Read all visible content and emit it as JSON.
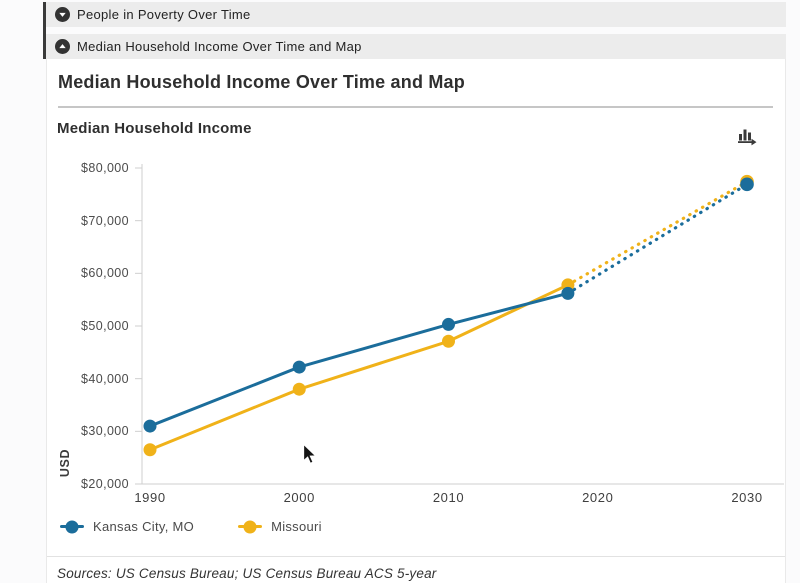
{
  "accordion": {
    "items": [
      {
        "label": "People in Poverty Over Time",
        "state": "collapsed",
        "icon": "chevron-down-circle-icon"
      },
      {
        "label": "Median Household Income Over Time and Map",
        "state": "expanded",
        "icon": "chevron-up-circle-icon"
      }
    ]
  },
  "page": {
    "title": "Median Household Income Over Time and Map"
  },
  "chart": {
    "title": "Median Household Income",
    "y_axis_title": "USD",
    "export_icon": "bar-chart-export-icon"
  },
  "chart_data": {
    "type": "line",
    "title": "Median Household Income",
    "xlabel": "",
    "ylabel": "USD",
    "xlim": [
      1990,
      2030
    ],
    "ylim": [
      20000,
      80000
    ],
    "grid": false,
    "legend_position": "bottom",
    "x_ticks": [
      {
        "value": 1990,
        "label": "1990"
      },
      {
        "value": 2000,
        "label": "2000"
      },
      {
        "value": 2010,
        "label": "2010"
      },
      {
        "value": 2020,
        "label": "2020"
      },
      {
        "value": 2030,
        "label": "2030"
      }
    ],
    "y_ticks": [
      {
        "value": 20000,
        "label": "$20,000"
      },
      {
        "value": 30000,
        "label": "$30,000"
      },
      {
        "value": 40000,
        "label": "$40,000"
      },
      {
        "value": 50000,
        "label": "$50,000"
      },
      {
        "value": 60000,
        "label": "$60,000"
      },
      {
        "value": 70000,
        "label": "$70,000"
      },
      {
        "value": 80000,
        "label": "$80,000"
      }
    ],
    "series": [
      {
        "name": "Missouri",
        "color": "#f0b219",
        "x": [
          1990,
          2000,
          2010,
          2018
        ],
        "values": [
          26500,
          38000,
          47100,
          57800
        ],
        "projection": {
          "style": "dotted",
          "x": [
            2018,
            2030
          ],
          "values": [
            57800,
            77400
          ]
        }
      },
      {
        "name": "Kansas City, MO",
        "color": "#1b6d9b",
        "x": [
          1990,
          2000,
          2010,
          2018
        ],
        "values": [
          31000,
          42200,
          50300,
          56200
        ],
        "projection": {
          "style": "dotted",
          "x": [
            2018,
            2030
          ],
          "values": [
            56200,
            76900
          ]
        }
      }
    ]
  },
  "legend": {
    "items": [
      {
        "label": "Kansas City, MO",
        "color": "#1b6d9b",
        "marker": "circle-marker-icon"
      },
      {
        "label": "Missouri",
        "color": "#f0b219",
        "marker": "circle-marker-icon"
      }
    ]
  },
  "footer": {
    "sources": "Sources: US Census Bureau; US Census Bureau ACS 5-year"
  }
}
